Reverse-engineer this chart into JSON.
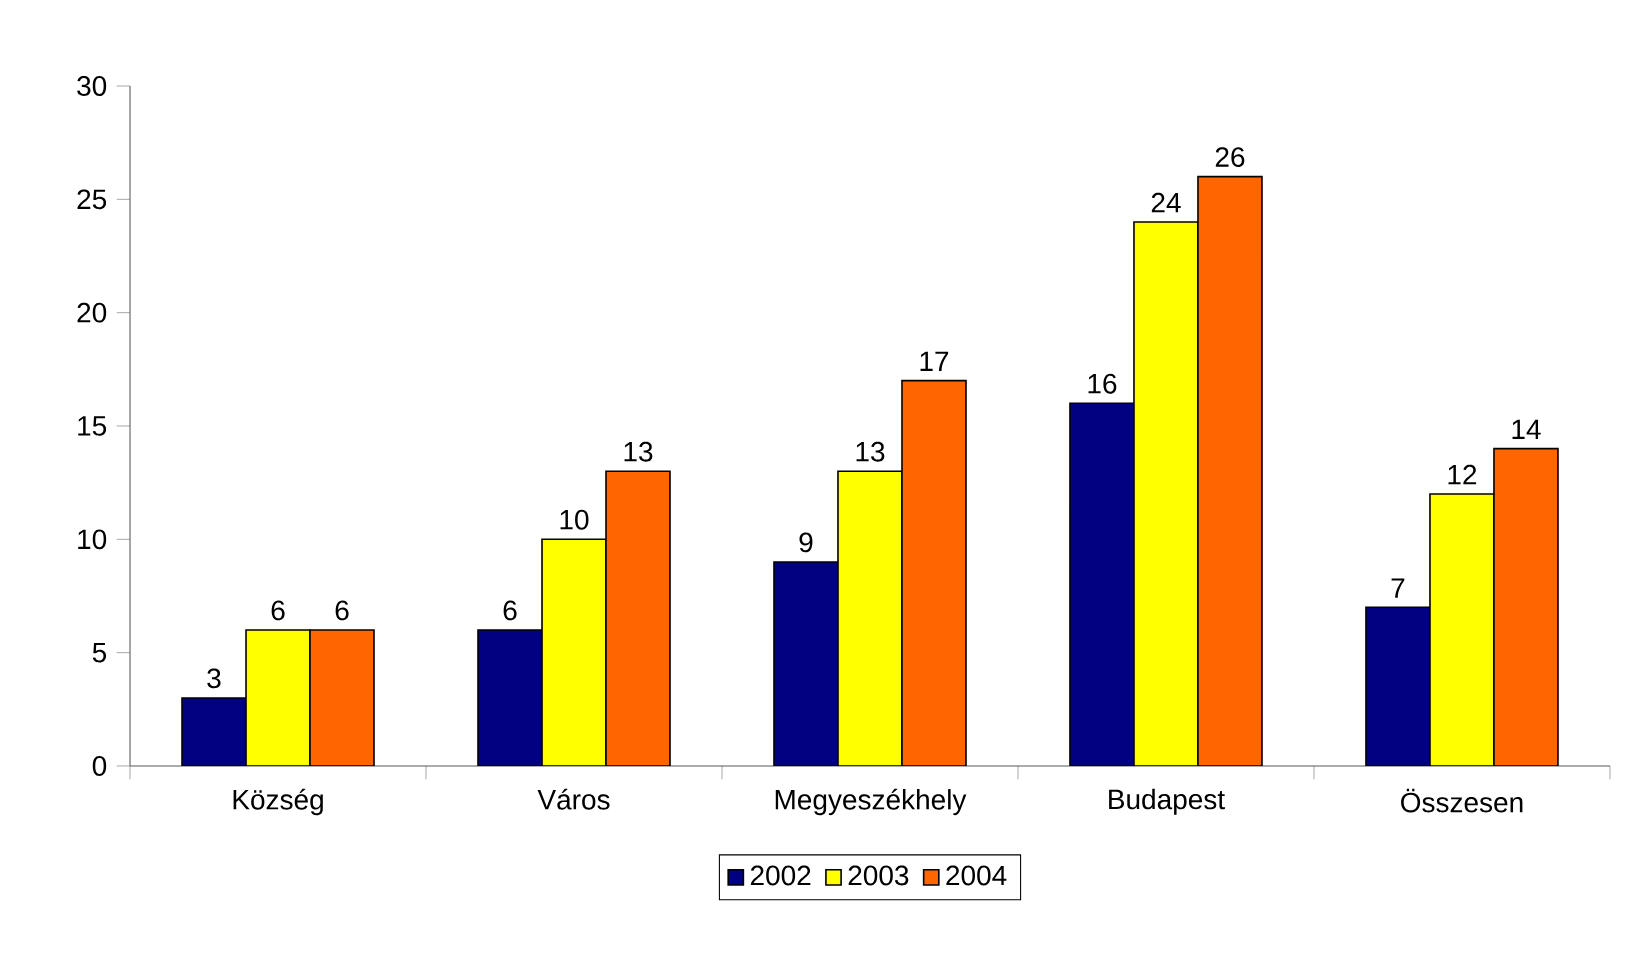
{
  "chart_data": {
    "type": "bar",
    "categories": [
      "Község",
      "Város",
      "Megyeszékhely",
      "Budapest",
      "Összesen"
    ],
    "series": [
      {
        "name": "2002",
        "color": "#000080",
        "values": [
          3,
          6,
          9,
          16,
          7
        ]
      },
      {
        "name": "2003",
        "color": "#ffff00",
        "values": [
          6,
          10,
          13,
          24,
          12
        ]
      },
      {
        "name": "2004",
        "color": "#ff6600",
        "values": [
          6,
          13,
          17,
          26,
          14
        ]
      }
    ],
    "ylim": [
      0,
      30
    ],
    "yticks": [
      0,
      5,
      10,
      15,
      20,
      25,
      30
    ],
    "data_labels": true,
    "legend": "bottom"
  }
}
